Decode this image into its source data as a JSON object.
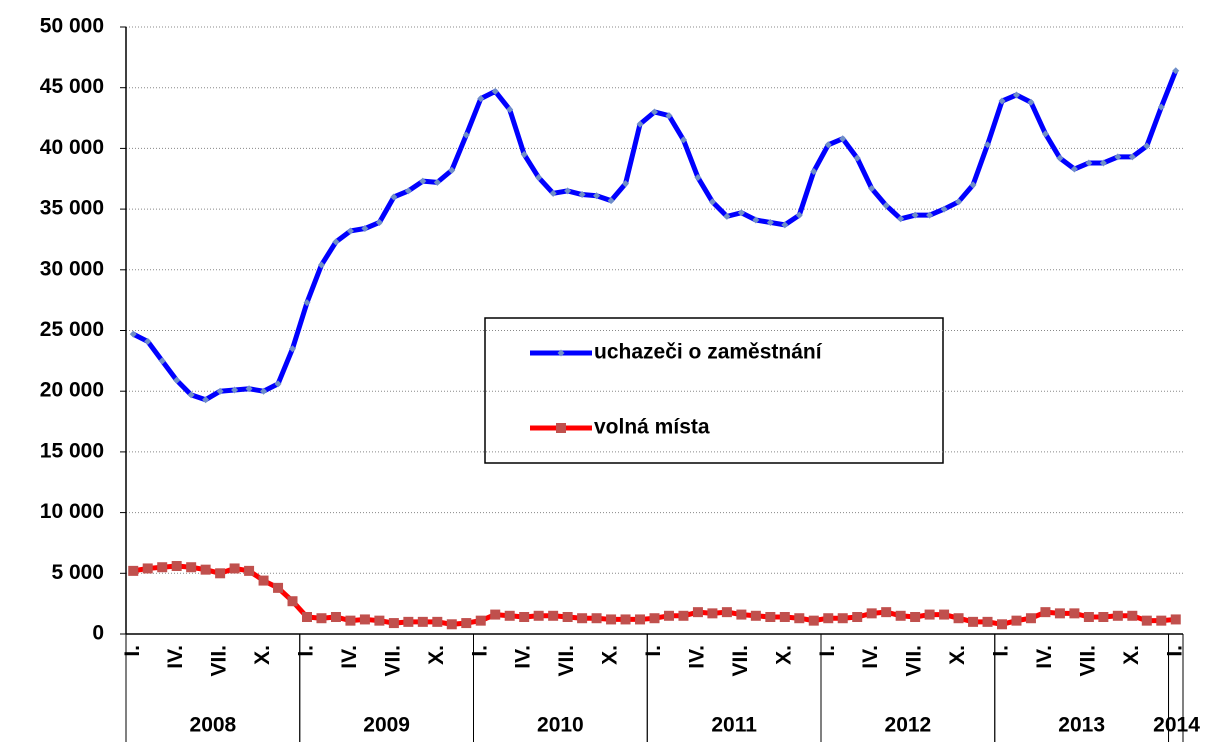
{
  "chart_data": {
    "type": "line",
    "categories": [
      "I.",
      null,
      null,
      "IV.",
      null,
      null,
      "VII.",
      null,
      null,
      "X.",
      null,
      null,
      "I.",
      null,
      null,
      "IV.",
      null,
      null,
      "VII.",
      null,
      null,
      "X.",
      null,
      null,
      "I.",
      null,
      null,
      "IV.",
      null,
      null,
      "VII.",
      null,
      null,
      "X.",
      null,
      null,
      "I.",
      null,
      null,
      "IV.",
      null,
      null,
      "VII.",
      null,
      null,
      "X.",
      null,
      null,
      "I.",
      null,
      null,
      "IV.",
      null,
      null,
      "VII.",
      null,
      null,
      "X.",
      null,
      null,
      "I.",
      null,
      null,
      "IV.",
      null,
      null,
      "VII.",
      null,
      null,
      "X.",
      null,
      null,
      "I."
    ],
    "years": [
      "2008",
      "2009",
      "2010",
      "2011",
      "2012",
      "2013",
      "2014"
    ],
    "series": [
      {
        "name": "uchazeči o zaměstnání",
        "color": "#0000ff",
        "marker_color": "#6f8fc8",
        "marker": "diamond",
        "values": [
          24700,
          24100,
          22500,
          20900,
          19700,
          19300,
          20000,
          20100,
          20200,
          20000,
          20600,
          23500,
          27300,
          30400,
          32300,
          33200,
          33400,
          33900,
          36000,
          36500,
          37300,
          37200,
          38200,
          41100,
          44100,
          44700,
          43200,
          39500,
          37600,
          36300,
          36500,
          36200,
          36100,
          35700,
          37100,
          42000,
          43000,
          42700,
          40700,
          37600,
          35600,
          34400,
          34700,
          34100,
          33900,
          33700,
          34500,
          38100,
          40300,
          40800,
          39200,
          36700,
          35300,
          34200,
          34500,
          34500,
          35000,
          35600,
          37000,
          40300,
          43900,
          44400,
          43800,
          41200,
          39200,
          38300,
          38800,
          38800,
          39300,
          39300,
          40200,
          43400,
          46400
        ]
      },
      {
        "name": "volná místa",
        "color": "#ff0000",
        "marker_color": "#c0504d",
        "marker": "square",
        "values": [
          5200,
          5400,
          5500,
          5600,
          5500,
          5300,
          5000,
          5400,
          5200,
          4400,
          3800,
          2700,
          1400,
          1300,
          1400,
          1100,
          1200,
          1100,
          900,
          1000,
          1000,
          1000,
          800,
          900,
          1100,
          1600,
          1500,
          1400,
          1500,
          1500,
          1400,
          1300,
          1300,
          1200,
          1200,
          1200,
          1300,
          1500,
          1500,
          1800,
          1700,
          1800,
          1600,
          1500,
          1400,
          1400,
          1300,
          1100,
          1300,
          1300,
          1400,
          1700,
          1800,
          1500,
          1400,
          1600,
          1600,
          1300,
          1000,
          1000,
          800,
          1100,
          1300,
          1800,
          1700,
          1700,
          1400,
          1400,
          1500,
          1500,
          1100,
          1100,
          1200
        ]
      }
    ],
    "ylim": [
      0,
      50000
    ],
    "yticks": [
      0,
      {
        "value": 5000,
        "label": "5 000"
      },
      {
        "value": 10000,
        "label": "10 000"
      },
      {
        "value": 15000,
        "label": "15 000"
      },
      {
        "value": 20000,
        "label": "20 000"
      },
      {
        "value": 25000,
        "label": "25 000"
      },
      {
        "value": 30000,
        "label": "30 000"
      },
      {
        "value": 35000,
        "label": "35 000"
      },
      {
        "value": 40000,
        "label": "40 000"
      },
      {
        "value": 45000,
        "label": "45 000"
      },
      {
        "value": 50000,
        "label": "50 000"
      }
    ],
    "grid": true
  }
}
